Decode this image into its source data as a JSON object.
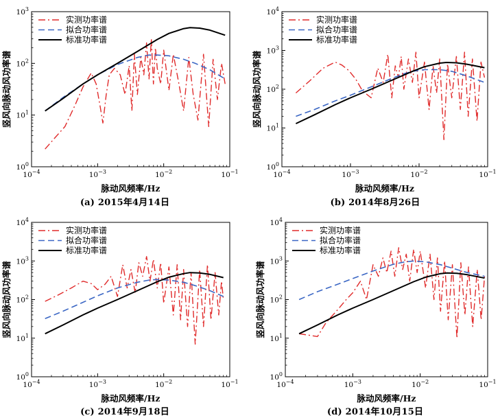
{
  "chart_data": [
    {
      "type": "line",
      "caption": "(a) 2015年4月14日",
      "xlabel": "脉动风频率/Hz",
      "ylabel": "竖风向脉动风功率谱",
      "x_scale": "log",
      "y_scale": "log",
      "xlim": [
        0.0001,
        0.1
      ],
      "ylim": [
        1,
        1000
      ],
      "x_ticks": [
        "10^-4",
        "10^-3",
        "10^-2",
        "10^-1"
      ],
      "y_ticks": [
        "10^0",
        "10^1",
        "10^2",
        "10^3"
      ],
      "legend_position": "top-left",
      "series": [
        {
          "name": "实测功率谱",
          "style": "dashdot",
          "color": "#e02a2a",
          "x": [
            0.00016,
            0.00022,
            0.00032,
            0.00045,
            0.0006,
            0.0008,
            0.00095,
            0.0011,
            0.0012,
            0.00135,
            0.0015,
            0.0018,
            0.0022,
            0.0026,
            0.003,
            0.0033,
            0.0036,
            0.004,
            0.0045,
            0.005,
            0.0055,
            0.006,
            0.0065,
            0.007,
            0.0075,
            0.008,
            0.009,
            0.01,
            0.012,
            0.014,
            0.017,
            0.02,
            0.024,
            0.028,
            0.033,
            0.04,
            0.048,
            0.056,
            0.065,
            0.075,
            0.085
          ],
          "y": [
            2.2,
            3.5,
            6,
            15,
            35,
            65,
            40,
            14,
            7,
            25,
            60,
            80,
            60,
            25,
            90,
            12,
            150,
            25,
            130,
            60,
            250,
            50,
            300,
            40,
            200,
            80,
            40,
            180,
            30,
            150,
            40,
            12,
            130,
            25,
            8,
            150,
            6,
            120,
            20,
            100,
            40
          ]
        },
        {
          "name": "拟合功率谱",
          "style": "dashed",
          "color": "#3a66c4",
          "x": [
            0.00016,
            0.0003,
            0.0006,
            0.001,
            0.002,
            0.004,
            0.006,
            0.008,
            0.012,
            0.02,
            0.03,
            0.05,
            0.085
          ],
          "y": [
            12,
            22,
            40,
            60,
            95,
            130,
            145,
            145,
            140,
            120,
            100,
            75,
            50
          ]
        },
        {
          "name": "标准功率谱",
          "style": "solid",
          "color": "#000000",
          "x": [
            0.00016,
            0.0003,
            0.0006,
            0.001,
            0.002,
            0.004,
            0.008,
            0.012,
            0.02,
            0.025,
            0.035,
            0.05,
            0.085
          ],
          "y": [
            12,
            21,
            40,
            60,
            100,
            170,
            290,
            380,
            470,
            490,
            480,
            440,
            350
          ]
        }
      ]
    },
    {
      "type": "line",
      "caption": "(b) 2014年8月26日",
      "xlabel": "脉动风频率/Hz",
      "ylabel": "竖风向脉动风功率谱",
      "x_scale": "log",
      "y_scale": "log",
      "xlim": [
        0.0001,
        0.1
      ],
      "ylim": [
        1,
        10000
      ],
      "x_ticks": [
        "10^-4",
        "10^-3",
        "10^-2",
        "10^-1"
      ],
      "y_ticks": [
        "10^0",
        "10^1",
        "10^2",
        "10^3",
        "10^4"
      ],
      "legend_position": "top-left",
      "series": [
        {
          "name": "实测功率谱",
          "style": "dashdot",
          "color": "#e02a2a",
          "x": [
            0.00016,
            0.00025,
            0.0004,
            0.0006,
            0.00075,
            0.00095,
            0.0012,
            0.0015,
            0.002,
            0.0025,
            0.003,
            0.0035,
            0.004,
            0.0045,
            0.005,
            0.0055,
            0.006,
            0.007,
            0.008,
            0.009,
            0.01,
            0.012,
            0.014,
            0.016,
            0.018,
            0.02,
            0.023,
            0.026,
            0.03,
            0.035,
            0.04,
            0.046,
            0.052,
            0.06,
            0.07,
            0.08,
            0.09
          ],
          "y": [
            80,
            160,
            350,
            500,
            420,
            300,
            180,
            90,
            60,
            350,
            150,
            800,
            60,
            400,
            200,
            700,
            100,
            600,
            150,
            900,
            60,
            500,
            30,
            400,
            80,
            600,
            5,
            450,
            60,
            700,
            30,
            900,
            20,
            600,
            15,
            500,
            200
          ]
        },
        {
          "name": "拟合功率谱",
          "style": "dashed",
          "color": "#3a66c4",
          "x": [
            0.00016,
            0.0003,
            0.0006,
            0.001,
            0.002,
            0.004,
            0.006,
            0.008,
            0.012,
            0.02,
            0.03,
            0.05,
            0.09
          ],
          "y": [
            20,
            30,
            50,
            70,
            115,
            190,
            250,
            290,
            320,
            320,
            290,
            220,
            150
          ]
        },
        {
          "name": "标准功率谱",
          "style": "solid",
          "color": "#000000",
          "x": [
            0.00016,
            0.0003,
            0.0006,
            0.001,
            0.002,
            0.004,
            0.008,
            0.012,
            0.02,
            0.025,
            0.035,
            0.05,
            0.09
          ],
          "y": [
            13,
            22,
            40,
            60,
            100,
            170,
            290,
            380,
            470,
            490,
            480,
            440,
            360
          ]
        }
      ]
    },
    {
      "type": "line",
      "caption": "(c) 2014年9月18日",
      "xlabel": "脉动风频率/Hz",
      "ylabel": "竖风向脉动风功率谱",
      "x_scale": "log",
      "y_scale": "log",
      "xlim": [
        0.0001,
        0.1
      ],
      "ylim": [
        1,
        10000
      ],
      "x_ticks": [
        "10^-4",
        "10^-3",
        "10^-2",
        "10^-1"
      ],
      "y_ticks": [
        "10^0",
        "10^1",
        "10^2",
        "10^3",
        "10^4"
      ],
      "legend_position": "top-left",
      "series": [
        {
          "name": "实测功率谱",
          "style": "dashdot",
          "color": "#e02a2a",
          "x": [
            0.00016,
            0.00025,
            0.0004,
            0.0006,
            0.0008,
            0.001,
            0.0013,
            0.0016,
            0.002,
            0.0024,
            0.0028,
            0.0032,
            0.0037,
            0.0042,
            0.0048,
            0.0055,
            0.0062,
            0.007,
            0.008,
            0.009,
            0.01,
            0.012,
            0.014,
            0.016,
            0.018,
            0.02,
            0.023,
            0.026,
            0.03,
            0.035,
            0.04,
            0.046,
            0.052,
            0.06,
            0.068,
            0.075,
            0.08
          ],
          "y": [
            90,
            130,
            200,
            300,
            260,
            180,
            250,
            400,
            120,
            800,
            200,
            600,
            150,
            900,
            400,
            1300,
            300,
            1100,
            200,
            900,
            80,
            700,
            40,
            800,
            30,
            600,
            20,
            500,
            7,
            600,
            20,
            800,
            30,
            500,
            40,
            300,
            100
          ]
        },
        {
          "name": "拟合功率谱",
          "style": "dashed",
          "color": "#3a66c4",
          "x": [
            0.00016,
            0.0003,
            0.0006,
            0.001,
            0.002,
            0.004,
            0.006,
            0.008,
            0.012,
            0.02,
            0.03,
            0.05,
            0.08
          ],
          "y": [
            32,
            50,
            85,
            125,
            200,
            280,
            320,
            330,
            320,
            280,
            230,
            170,
            120
          ]
        },
        {
          "name": "标准功率谱",
          "style": "solid",
          "color": "#000000",
          "x": [
            0.00016,
            0.0003,
            0.0006,
            0.001,
            0.002,
            0.004,
            0.008,
            0.012,
            0.02,
            0.025,
            0.035,
            0.05,
            0.08
          ],
          "y": [
            13,
            22,
            40,
            60,
            100,
            170,
            290,
            380,
            470,
            500,
            490,
            450,
            370
          ]
        }
      ]
    },
    {
      "type": "line",
      "caption": "(d) 2014年10月15日",
      "xlabel": "脉动风频率/Hz",
      "ylabel": "竖风向脉动风功率谱",
      "x_scale": "log",
      "y_scale": "log",
      "xlim": [
        0.0001,
        0.1
      ],
      "ylim": [
        1,
        10000
      ],
      "x_ticks": [
        "10^-4",
        "10^-3",
        "10^-2",
        "10^-1"
      ],
      "y_ticks": [
        "10^0",
        "10^1",
        "10^2",
        "10^3",
        "10^4"
      ],
      "legend_position": "top-left",
      "series": [
        {
          "name": "实测功率谱",
          "style": "dashdot",
          "color": "#e02a2a",
          "x": [
            0.00016,
            0.00022,
            0.0003,
            0.0004,
            0.0006,
            0.0008,
            0.001,
            0.0013,
            0.0016,
            0.002,
            0.0024,
            0.0028,
            0.0032,
            0.0037,
            0.0042,
            0.0048,
            0.0055,
            0.0062,
            0.007,
            0.008,
            0.009,
            0.01,
            0.012,
            0.014,
            0.016,
            0.018,
            0.02,
            0.023,
            0.026,
            0.03,
            0.035,
            0.04,
            0.046,
            0.052,
            0.06,
            0.07,
            0.08,
            0.09
          ],
          "y": [
            13,
            12,
            11,
            25,
            55,
            100,
            150,
            300,
            100,
            800,
            400,
            1200,
            500,
            1800,
            400,
            2200,
            600,
            1500,
            300,
            2000,
            500,
            1800,
            200,
            1500,
            100,
            1200,
            50,
            1000,
            30,
            800,
            10,
            900,
            40,
            700,
            20,
            600,
            30,
            400
          ]
        },
        {
          "name": "拟合功率谱",
          "style": "dashed",
          "color": "#3a66c4",
          "x": [
            0.00016,
            0.0003,
            0.0006,
            0.001,
            0.002,
            0.004,
            0.006,
            0.008,
            0.012,
            0.02,
            0.03,
            0.05,
            0.09
          ],
          "y": [
            100,
            160,
            250,
            350,
            550,
            820,
            950,
            1000,
            950,
            800,
            650,
            500,
            400
          ]
        },
        {
          "name": "标准功率谱",
          "style": "solid",
          "color": "#000000",
          "x": [
            0.00016,
            0.0003,
            0.0006,
            0.001,
            0.002,
            0.004,
            0.008,
            0.012,
            0.02,
            0.025,
            0.035,
            0.05,
            0.09
          ],
          "y": [
            13,
            22,
            40,
            60,
            100,
            170,
            290,
            380,
            470,
            490,
            480,
            440,
            360
          ]
        }
      ]
    }
  ]
}
